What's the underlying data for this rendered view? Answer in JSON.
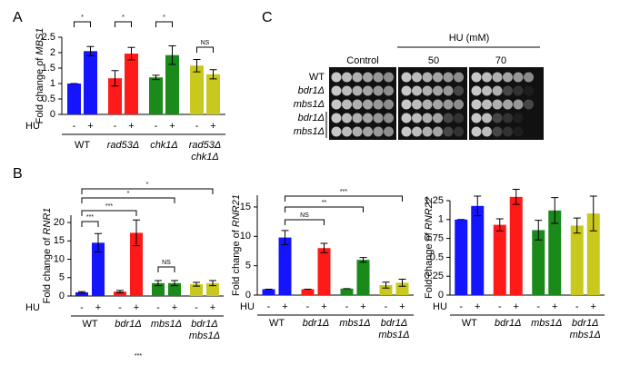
{
  "chart_data": [
    {
      "type": "bar",
      "panel": "A",
      "ylabel": [
        "Fold change of ",
        "MBS1"
      ],
      "xlabel": "HU",
      "categories": [
        "-",
        "+",
        "-",
        "+",
        "-",
        "+",
        "-",
        "+"
      ],
      "groups": [
        [
          "WT"
        ],
        [
          "rad53Δ"
        ],
        [
          "chk1Δ"
        ],
        [
          "rad53Δ",
          "chk1Δ"
        ]
      ],
      "colors": [
        "#1414ff",
        "#ff1a1a",
        "#1a8a1a",
        "#c8c81e"
      ],
      "values": [
        1.0,
        2.05,
        1.17,
        1.97,
        1.2,
        1.92,
        1.58,
        1.3
      ],
      "errors": [
        0,
        0.15,
        0.25,
        0.2,
        0.07,
        0.3,
        0.2,
        0.15
      ],
      "ylim": [
        0,
        2.5
      ],
      "yticks": [
        0,
        0.5,
        1,
        1.5,
        2,
        2.5
      ],
      "annotations": [
        "*",
        "*",
        "*",
        "NS"
      ]
    },
    {
      "type": "bar",
      "panel": "B",
      "ylabel": [
        "Fold change of ",
        "RNR1"
      ],
      "xlabel": "HU",
      "categories": [
        "-",
        "+",
        "-",
        "+",
        "-",
        "+",
        "-",
        "+"
      ],
      "groups": [
        [
          "WT"
        ],
        [
          "bdr1Δ"
        ],
        [
          "mbs1Δ"
        ],
        [
          "bdr1Δ",
          "mbs1Δ"
        ]
      ],
      "colors": [
        "#1414ff",
        "#ff1a1a",
        "#1a8a1a",
        "#c8c81e"
      ],
      "values": [
        1.0,
        14.5,
        1.2,
        17.2,
        3.5,
        3.5,
        3.2,
        3.5
      ],
      "errors": [
        0.2,
        2.5,
        0.3,
        3.5,
        0.7,
        0.7,
        0.5,
        0.7
      ],
      "ylim": [
        0,
        22
      ],
      "yticks": [
        0,
        5,
        10,
        15,
        20
      ],
      "annotations": [
        "***",
        "***",
        "*",
        "*",
        "NS",
        "***"
      ]
    },
    {
      "type": "bar",
      "ylabel": [
        "Fold change of ",
        "RNR21"
      ],
      "xlabel": "HU",
      "categories": [
        "-",
        "+",
        "-",
        "+",
        "-",
        "+",
        "-",
        "+"
      ],
      "groups": [
        [
          "WT"
        ],
        [
          "bdr1Δ"
        ],
        [
          "mbs1Δ"
        ],
        [
          "bdr1Δ",
          "mbs1Δ"
        ]
      ],
      "colors": [
        "#1414ff",
        "#ff1a1a",
        "#1a8a1a",
        "#c8c81e"
      ],
      "values": [
        1.0,
        9.8,
        1.0,
        8.0,
        1.1,
        6.0,
        1.7,
        2.1
      ],
      "errors": [
        0,
        1.2,
        0,
        0.8,
        0,
        0.4,
        0.5,
        0.6
      ],
      "ylim": [
        0,
        17
      ],
      "yticks": [
        0,
        5,
        10,
        15
      ],
      "annotations": [
        "NS",
        "**",
        "***"
      ]
    },
    {
      "type": "bar",
      "ylabel": [
        "Fold change of ",
        "RNR22"
      ],
      "xlabel": "HU",
      "categories": [
        "-",
        "+",
        "-",
        "+",
        "-",
        "+",
        "-",
        "+"
      ],
      "groups": [
        [
          "WT"
        ],
        [
          "bdr1Δ"
        ],
        [
          "mbs1Δ"
        ],
        [
          "bdr1Δ",
          "mbs1Δ"
        ]
      ],
      "colors": [
        "#1414ff",
        "#ff1a1a",
        "#1a8a1a",
        "#c8c81e"
      ],
      "values": [
        1.0,
        1.18,
        0.93,
        1.3,
        0.86,
        1.12,
        0.92,
        1.08
      ],
      "errors": [
        0,
        0.13,
        0.08,
        0.1,
        0.13,
        0.17,
        0.1,
        0.23
      ],
      "ylim": [
        0,
        1.25
      ],
      "yticks": [
        0,
        0.25,
        0.5,
        0.75,
        1,
        1.25
      ],
      "annotations": []
    }
  ],
  "panel_c": {
    "label": "C",
    "treatment": "HU (mM)",
    "conditions": [
      "Control",
      "50",
      "70"
    ],
    "strains": [
      "WT",
      "bdr1Δ",
      "mbs1Δ",
      "bdr1Δ",
      "mbs1Δ"
    ]
  }
}
